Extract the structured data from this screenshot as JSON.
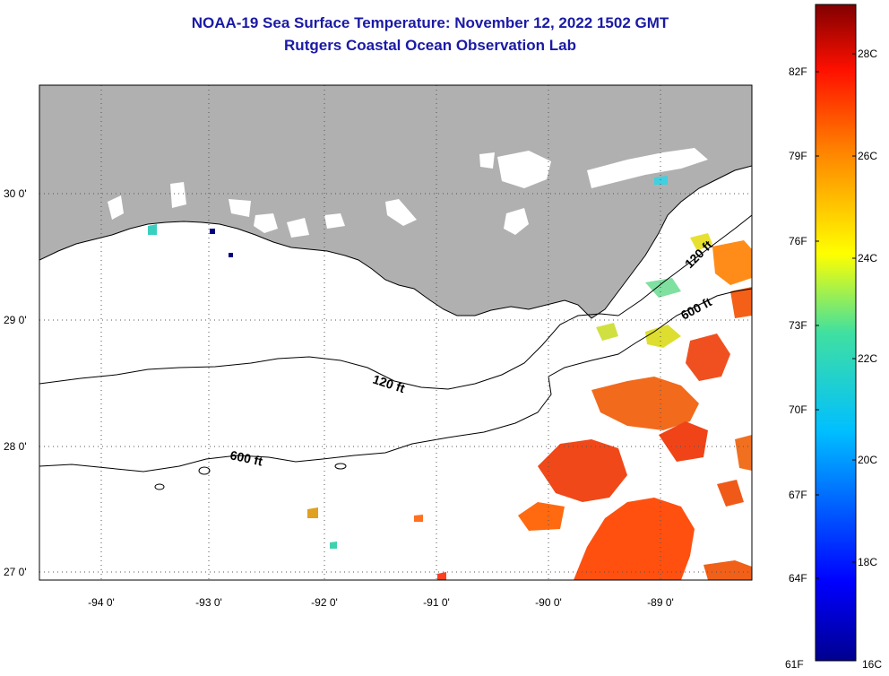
{
  "title": "NOAA-19 Sea Surface Temperature:  November 12, 2022 1502 GMT",
  "subtitle": "Rutgers Coastal Ocean Observation Lab",
  "lat_ticks": [
    "30 0'",
    "29 0'",
    "28 0'",
    "27 0'"
  ],
  "lon_ticks": [
    "-94 0'",
    "-93 0'",
    "-92 0'",
    "-91 0'",
    "-90 0'",
    "-89 0'"
  ],
  "contours": [
    "120 ft",
    "600 ft",
    "120 ft",
    "600 ft"
  ],
  "colorbar": {
    "fahrenheit": [
      "82F",
      "79F",
      "76F",
      "73F",
      "70F",
      "67F",
      "64F",
      "61F"
    ],
    "celsius": [
      "28C",
      "26C",
      "24C",
      "22C",
      "20C",
      "18C",
      "16C"
    ]
  },
  "colors": {
    "land": "#b0b0b0",
    "title": "#1a1aa6",
    "warm": "#f04010"
  }
}
